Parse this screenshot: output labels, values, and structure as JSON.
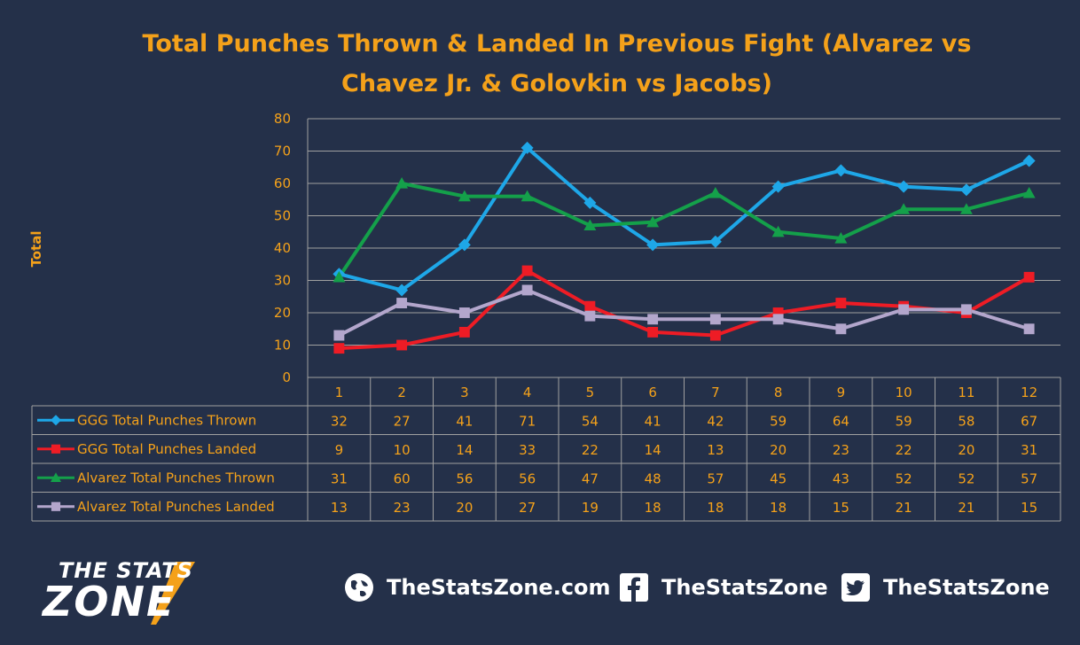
{
  "chart_data": {
    "type": "line",
    "title_lines": [
      "Total Punches Thrown & Landed In Previous Fight (Alvarez vs",
      "Chavez Jr. & Golovkin vs Jacobs)"
    ],
    "ylabel": "Total",
    "xlabel": "",
    "ylim": [
      0,
      80
    ],
    "yticks": [
      0,
      10,
      20,
      30,
      40,
      50,
      60,
      70,
      80
    ],
    "categories": [
      "1",
      "2",
      "3",
      "4",
      "5",
      "6",
      "7",
      "8",
      "9",
      "10",
      "11",
      "12"
    ],
    "grid": true,
    "legend_placement": "data-table",
    "series": [
      {
        "name": "GGG Total Punches Thrown",
        "color": "#1ea7e8",
        "marker": "diamond",
        "values": [
          32,
          27,
          41,
          71,
          54,
          41,
          42,
          59,
          64,
          59,
          58,
          67
        ]
      },
      {
        "name": "GGG Total Punches Landed",
        "color": "#ee1c25",
        "marker": "square",
        "values": [
          9,
          10,
          14,
          33,
          22,
          14,
          13,
          20,
          23,
          22,
          20,
          31
        ]
      },
      {
        "name": "Alvarez Total Punches Thrown",
        "color": "#14a04a",
        "marker": "triangle",
        "values": [
          31,
          60,
          56,
          56,
          47,
          48,
          57,
          45,
          43,
          52,
          52,
          57
        ]
      },
      {
        "name": "Alvarez Total Punches Landed",
        "color": "#b3a6cc",
        "marker": "square",
        "values": [
          13,
          23,
          20,
          27,
          19,
          18,
          18,
          18,
          15,
          21,
          21,
          15
        ]
      }
    ]
  },
  "footer": {
    "logo_top": "THE STATS",
    "logo_main": "ZONE",
    "website": "TheStatsZone.com",
    "facebook": "TheStatsZone",
    "twitter": "TheStatsZone",
    "icons": [
      "globe-icon",
      "facebook-icon",
      "twitter-icon"
    ]
  }
}
